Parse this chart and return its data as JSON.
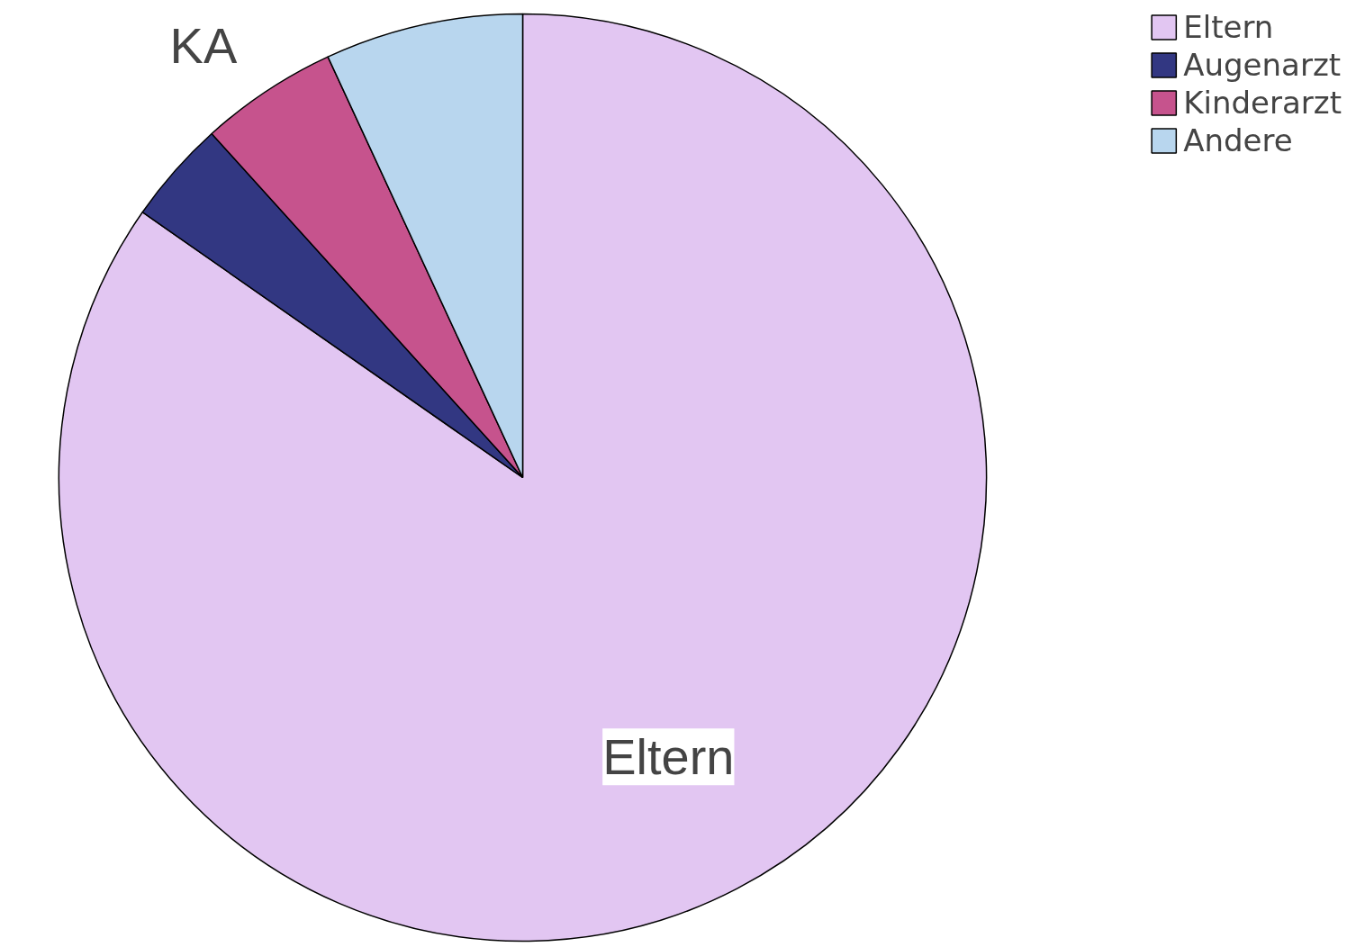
{
  "chart_data": {
    "type": "pie",
    "categories": [
      "Eltern",
      "Augenarzt",
      "Kinderarzt",
      "Andere"
    ],
    "values": [
      84.7,
      3.6,
      4.8,
      6.9
    ],
    "colors": [
      "#e2c6f2",
      "#323782",
      "#c6538d",
      "#b8d6ee"
    ],
    "value_labels": [
      "Eltern",
      null,
      "KA",
      null
    ],
    "legend": "top right"
  }
}
